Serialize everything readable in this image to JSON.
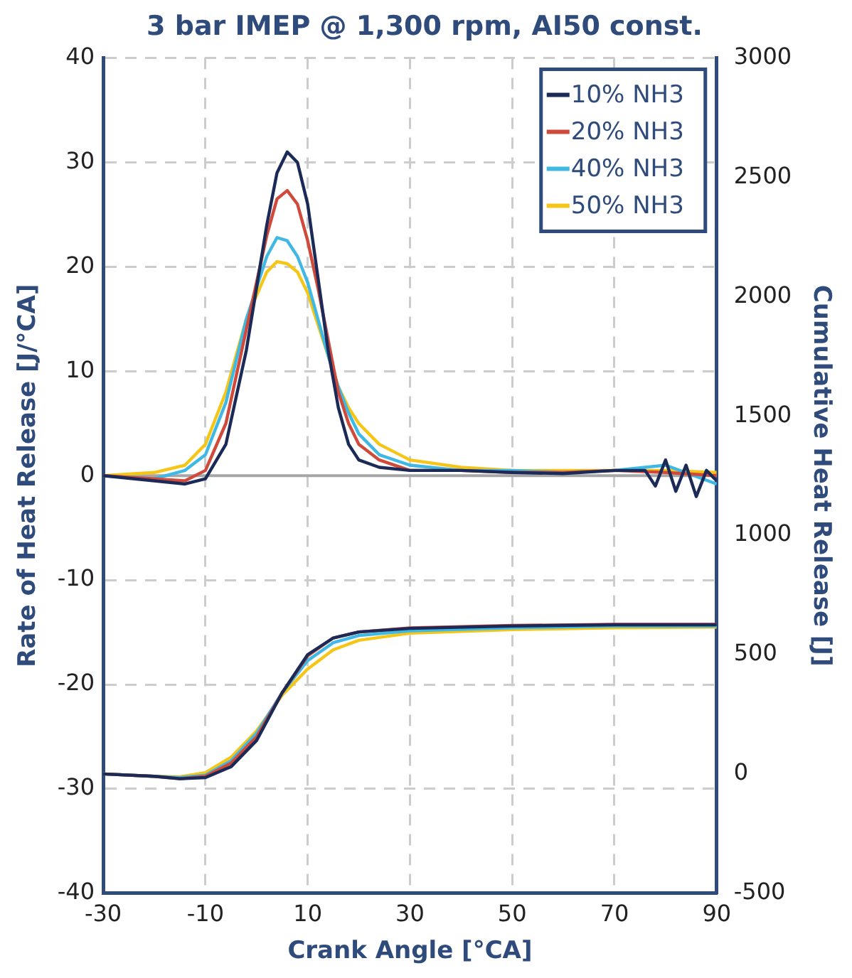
{
  "chart_data": {
    "type": "line",
    "title": "3 bar IMEP @ 1,300 rpm, AI50 const.",
    "xlabel": "Crank Angle [°CA]",
    "ylabel": "Rate of Heat Release [J/°CA]",
    "y2label": "Cumulative Heat Release [J]",
    "xlim": [
      -30,
      90
    ],
    "xticks": [
      -30,
      -10,
      10,
      30,
      50,
      70,
      90
    ],
    "ylim": [
      -40,
      40
    ],
    "yticks": [
      -40,
      -30,
      -20,
      -10,
      0,
      10,
      20,
      30,
      40
    ],
    "y2lim": [
      -500,
      3000
    ],
    "y2ticks": [
      -500,
      0,
      500,
      1000,
      1500,
      2000,
      2500,
      3000
    ],
    "grid": true,
    "legend": "top right",
    "marker": "none",
    "line_style": "solid",
    "ref_lines": [
      {
        "axis": "y",
        "value": 0,
        "color": "#a6a6a6"
      }
    ],
    "series": [
      {
        "name": "10% NH3",
        "color": "#1b2a56",
        "x": [
          -30,
          -20,
          -14,
          -10,
          -6,
          -2,
          2,
          4,
          6,
          8,
          10,
          12,
          14,
          16,
          18,
          20,
          24,
          30,
          40,
          50,
          60,
          70,
          76,
          78,
          80,
          82,
          84,
          86,
          88,
          90
        ],
        "values": [
          0,
          -0.5,
          -0.8,
          -0.3,
          3,
          12,
          24,
          29,
          31,
          30,
          26,
          19,
          12,
          6.5,
          3,
          1.5,
          0.8,
          0.5,
          0.5,
          0.3,
          0.2,
          0.5,
          0.5,
          -1,
          1.5,
          -1.5,
          1,
          -2,
          0.5,
          -0.5
        ]
      },
      {
        "name": "20% NH3",
        "color": "#d04a3c",
        "x": [
          -30,
          -20,
          -14,
          -10,
          -6,
          -2,
          2,
          4,
          6,
          8,
          10,
          12,
          14,
          16,
          18,
          20,
          24,
          30,
          40,
          50,
          60,
          70,
          80,
          90
        ],
        "values": [
          0,
          -0.3,
          -0.5,
          0.5,
          5,
          14,
          23,
          26.5,
          27.3,
          26,
          22.5,
          18,
          13,
          8,
          5,
          3,
          1.5,
          0.5,
          0.5,
          0.3,
          0.3,
          0.5,
          0.3,
          0
        ]
      },
      {
        "name": "40% NH3",
        "color": "#3fb8e4",
        "x": [
          -30,
          -20,
          -14,
          -10,
          -6,
          -2,
          2,
          4,
          6,
          8,
          10,
          12,
          14,
          16,
          18,
          20,
          24,
          30,
          40,
          50,
          60,
          70,
          80,
          90
        ],
        "values": [
          0,
          -0.3,
          0.5,
          2,
          7,
          15,
          21,
          22.8,
          22.5,
          21,
          18.5,
          15,
          11.5,
          8.5,
          6,
          4,
          2,
          1,
          0.5,
          0.5,
          0.3,
          0.5,
          1,
          -0.8
        ]
      },
      {
        "name": "50% NH3",
        "color": "#f5c518",
        "x": [
          -30,
          -20,
          -14,
          -10,
          -6,
          -2,
          2,
          4,
          6,
          8,
          10,
          12,
          14,
          16,
          18,
          20,
          24,
          30,
          40,
          50,
          60,
          70,
          80,
          90
        ],
        "values": [
          0,
          0.3,
          1,
          3,
          8,
          15,
          19.5,
          20.5,
          20.3,
          19.5,
          17.5,
          14.5,
          11.5,
          8.5,
          6.5,
          5,
          3,
          1.5,
          0.8,
          0.5,
          0.5,
          0.5,
          0.5,
          0.3
        ]
      },
      {
        "axis": "y2",
        "color": "#1b2a56",
        "x": [
          -30,
          -20,
          -15,
          -10,
          -5,
          0,
          5,
          10,
          15,
          20,
          30,
          50,
          70,
          90
        ],
        "values": [
          0,
          -10,
          -20,
          -15,
          30,
          140,
          340,
          500,
          570,
          595,
          610,
          620,
          625,
          625
        ]
      },
      {
        "axis": "y2",
        "color": "#d04a3c",
        "x": [
          -30,
          -20,
          -15,
          -10,
          -5,
          0,
          5,
          10,
          15,
          20,
          30,
          50,
          70,
          90
        ],
        "values": [
          0,
          -10,
          -20,
          -10,
          45,
          155,
          340,
          495,
          570,
          595,
          612,
          622,
          627,
          627
        ]
      },
      {
        "axis": "y2",
        "color": "#3fb8e4",
        "x": [
          -30,
          -20,
          -15,
          -10,
          -5,
          0,
          5,
          10,
          15,
          20,
          30,
          50,
          70,
          90
        ],
        "values": [
          0,
          -10,
          -15,
          -5,
          55,
          170,
          340,
          475,
          550,
          580,
          600,
          612,
          620,
          620
        ]
      },
      {
        "axis": "y2",
        "color": "#f5c518",
        "x": [
          -30,
          -20,
          -15,
          -10,
          -5,
          0,
          5,
          10,
          15,
          20,
          30,
          50,
          70,
          90
        ],
        "values": [
          0,
          -10,
          -12,
          5,
          70,
          180,
          330,
          440,
          520,
          560,
          590,
          605,
          612,
          615
        ]
      }
    ]
  }
}
